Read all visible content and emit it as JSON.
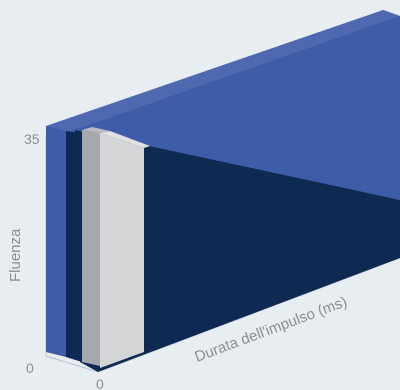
{
  "chart_data": {
    "type": "area",
    "title": "",
    "xlabel": "Durata dell'impulso (ms)",
    "ylabel": "Fluenza",
    "x_tick_labels": [
      "0"
    ],
    "y_tick_labels": [
      "0",
      "35"
    ],
    "ylim": [
      0,
      35
    ],
    "grid": false,
    "legend": "none",
    "series": [
      {
        "color": "#3f5ca8"
      },
      {
        "color": "#0e2a52"
      },
      {
        "color": "#a5a8ad"
      },
      {
        "color": "#d4d5d7"
      }
    ]
  }
}
